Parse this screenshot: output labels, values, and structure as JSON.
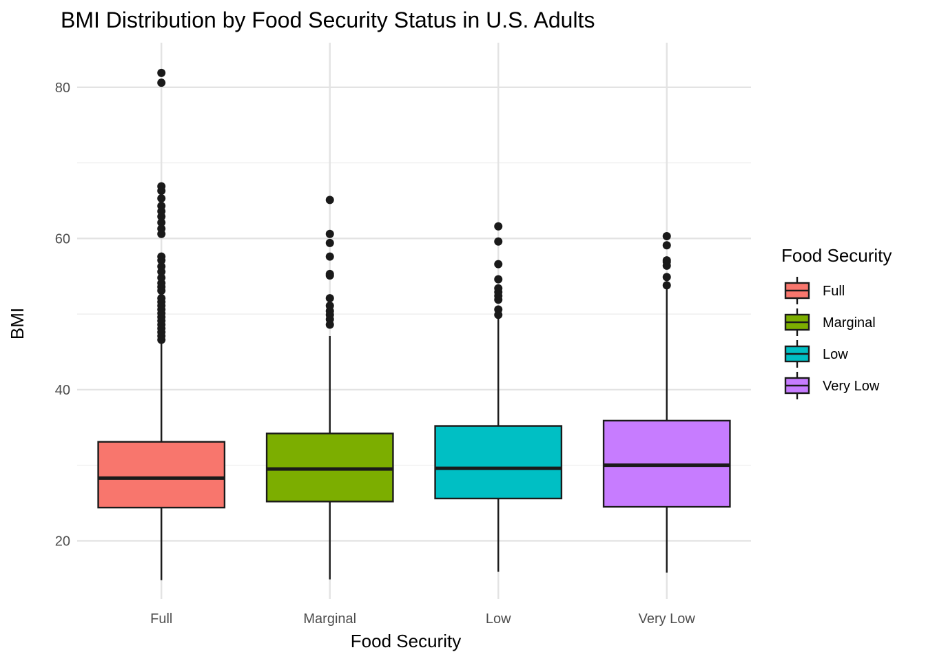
{
  "chart_data": {
    "type": "box",
    "title": "BMI Distribution by Food Security Status in U.S. Adults",
    "xlabel": "Food Security",
    "ylabel": "BMI",
    "ylim": [
      12.3,
      85.9
    ],
    "yticks": [
      20,
      40,
      60,
      80
    ],
    "grid": true,
    "legend": {
      "title": "Food Security",
      "position": "right"
    },
    "categories": [
      "Full",
      "Marginal",
      "Low",
      "Very Low"
    ],
    "series": [
      {
        "name": "Full",
        "color": "#F8766D",
        "min": 14.8,
        "q1": 24.4,
        "median": 28.3,
        "q3": 33.1,
        "max": 46.3,
        "outliers": [
          46.6,
          47.1,
          47.6,
          48.1,
          48.6,
          49.1,
          49.6,
          50.1,
          50.6,
          51.1,
          51.6,
          52.1,
          53.1,
          53.6,
          54.1,
          54.8,
          55.6,
          56.3,
          57.1,
          57.6,
          60.6,
          61.3,
          62.1,
          62.9,
          63.6,
          64.3,
          65.3,
          66.3,
          66.9,
          80.6,
          81.9
        ]
      },
      {
        "name": "Marginal",
        "color": "#7CAE00",
        "min": 14.9,
        "q1": 25.2,
        "median": 29.5,
        "q3": 34.2,
        "max": 47.1,
        "outliers": [
          48.6,
          49.3,
          49.9,
          50.4,
          51.1,
          52.1,
          55.1,
          55.3,
          57.6,
          59.4,
          60.6,
          65.1
        ]
      },
      {
        "name": "Low",
        "color": "#00BFC4",
        "min": 15.9,
        "q1": 25.6,
        "median": 29.6,
        "q3": 35.2,
        "max": 49.6,
        "outliers": [
          49.9,
          50.6,
          51.9,
          52.4,
          52.9,
          53.4,
          54.6,
          56.6,
          59.6,
          61.6
        ]
      },
      {
        "name": "Very Low",
        "color": "#C77CFF",
        "min": 15.8,
        "q1": 24.5,
        "median": 30.0,
        "q3": 35.9,
        "max": 53.5,
        "outliers": [
          53.8,
          54.9,
          56.4,
          56.9,
          57.1,
          59.1,
          60.3
        ]
      }
    ]
  }
}
